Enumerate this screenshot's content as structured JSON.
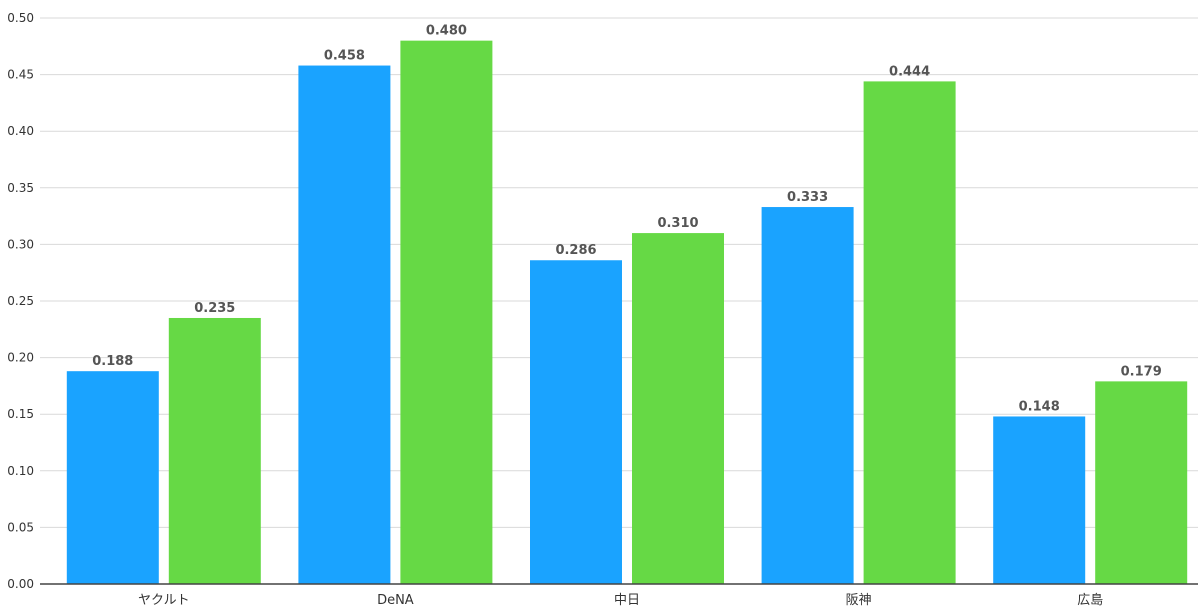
{
  "chart_data": {
    "type": "bar",
    "categories": [
      "ヤクルト",
      "DeNA",
      "中日",
      "阪神",
      "広島"
    ],
    "series": [
      {
        "color": "#1aa3ff",
        "values": [
          0.188,
          0.458,
          0.286,
          0.333,
          0.148
        ]
      },
      {
        "color": "#66d945",
        "values": [
          0.235,
          0.48,
          0.31,
          0.444,
          0.179
        ]
      }
    ],
    "ylim": [
      0,
      0.5
    ],
    "yticks": [
      "0.00",
      "0.05",
      "0.10",
      "0.15",
      "0.20",
      "0.25",
      "0.30",
      "0.35",
      "0.40",
      "0.45",
      "0.50"
    ],
    "grid": true,
    "legend": "none",
    "data_labels": true,
    "title": "",
    "xlabel": "",
    "ylabel": ""
  }
}
